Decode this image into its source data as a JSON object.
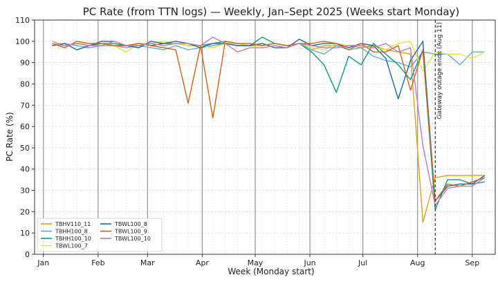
{
  "chart_data": {
    "type": "line",
    "title": "PC Rate (from TTN logs) — Weekly, Jan–Sept 2025 (Weeks start Monday)",
    "xlabel": "Week (Monday start)",
    "ylabel": "PC Rate (%)",
    "ylim": [
      0,
      110
    ],
    "yticks": [
      0,
      10,
      20,
      30,
      40,
      50,
      60,
      70,
      80,
      90,
      100,
      110
    ],
    "xlim": [
      "2024-12-27",
      "2025-09-14"
    ],
    "xticks": [
      {
        "date": "2025-01-01",
        "label": "Jan"
      },
      {
        "date": "2025-02-01",
        "label": "Feb"
      },
      {
        "date": "2025-03-01",
        "label": "Mar"
      },
      {
        "date": "2025-04-01",
        "label": "Apr"
      },
      {
        "date": "2025-05-01",
        "label": "May"
      },
      {
        "date": "2025-06-01",
        "label": "Jun"
      },
      {
        "date": "2025-07-01",
        "label": "Jul"
      },
      {
        "date": "2025-08-01",
        "label": "Aug"
      },
      {
        "date": "2025-09-01",
        "label": "Sep"
      }
    ],
    "grid": true,
    "legend_position": "bottom-left",
    "x": [
      "2025-01-06",
      "2025-01-13",
      "2025-01-20",
      "2025-01-27",
      "2025-02-03",
      "2025-02-10",
      "2025-02-17",
      "2025-02-24",
      "2025-03-03",
      "2025-03-10",
      "2025-03-17",
      "2025-03-24",
      "2025-03-31",
      "2025-04-07",
      "2025-04-14",
      "2025-04-21",
      "2025-04-28",
      "2025-05-05",
      "2025-05-12",
      "2025-05-19",
      "2025-05-26",
      "2025-06-02",
      "2025-06-09",
      "2025-06-16",
      "2025-06-23",
      "2025-06-30",
      "2025-07-07",
      "2025-07-14",
      "2025-07-21",
      "2025-07-28",
      "2025-08-04",
      "2025-08-11",
      "2025-08-18",
      "2025-08-25",
      "2025-09-01",
      "2025-09-08"
    ],
    "annotation": {
      "date": "2025-08-11",
      "label": "Gateway outage ends (Aug 11)"
    },
    "series": [
      {
        "name": "TBHV110_11",
        "color": "#e0a21b",
        "values": [
          100,
          98,
          99,
          99,
          99,
          98,
          98,
          99,
          98,
          99,
          99,
          98,
          98,
          97,
          99,
          99,
          98,
          98,
          99,
          98,
          99,
          96,
          98,
          98,
          98,
          97,
          98,
          96,
          95,
          94,
          15,
          36,
          37,
          37,
          37,
          37
        ]
      },
      {
        "name": "TBHH100_8",
        "color": "#5aaee0",
        "values": [
          98,
          99,
          98,
          97,
          98,
          98,
          97,
          98,
          97,
          96,
          98,
          96,
          97,
          98,
          99,
          98,
          98,
          98,
          99,
          98,
          99,
          96,
          94,
          98,
          96,
          97,
          93,
          91,
          90,
          88,
          95,
          94,
          94,
          89,
          95,
          95
        ]
      },
      {
        "name": "TBHH100_10",
        "color": "#0f9a7e",
        "values": [
          99,
          98,
          99,
          98,
          99,
          99,
          98,
          99,
          98,
          99,
          99,
          98,
          98,
          99,
          100,
          99,
          98,
          102,
          99,
          98,
          99,
          95,
          89,
          76,
          93,
          89,
          99,
          94,
          89,
          82,
          96,
          21,
          35,
          35,
          33,
          34
        ]
      },
      {
        "name": "TBWL100_7",
        "color": "#f0e040",
        "values": [
          99,
          98,
          99,
          99,
          99,
          98,
          95,
          99,
          99,
          100,
          99,
          98,
          98,
          97,
          99,
          99,
          98,
          98,
          99,
          98,
          99,
          97,
          96,
          99,
          98,
          98,
          97,
          96,
          99,
          100,
          86,
          95,
          94,
          94,
          92,
          95
        ]
      },
      {
        "name": "TBWL100_8",
        "color": "#1a6aa0",
        "values": [
          98,
          99,
          96,
          98,
          100,
          100,
          98,
          97,
          100,
          99,
          100,
          99,
          97,
          99,
          99,
          98,
          98,
          99,
          97,
          97,
          101,
          98,
          99,
          99,
          97,
          99,
          98,
          92,
          73,
          91,
          100,
          25,
          32,
          33,
          33,
          37
        ]
      },
      {
        "name": "TBWL100_9",
        "color": "#d0621a",
        "values": [
          99,
          97,
          100,
          99,
          99,
          98,
          98,
          99,
          98,
          97,
          96,
          71,
          98,
          64,
          100,
          99,
          99,
          98,
          99,
          98,
          99,
          99,
          100,
          99,
          96,
          99,
          95,
          95,
          98,
          77,
          96,
          25,
          33,
          32,
          34,
          36
        ]
      },
      {
        "name": "TBWL100_10",
        "color": "#c07ac0",
        "values": [
          99,
          98,
          99,
          98,
          98,
          100,
          98,
          98,
          99,
          98,
          99,
          99,
          98,
          102,
          99,
          95,
          97,
          97,
          98,
          97,
          99,
          98,
          97,
          97,
          98,
          98,
          97,
          99,
          95,
          97,
          51,
          23,
          31,
          32,
          32,
          36
        ]
      }
    ]
  }
}
